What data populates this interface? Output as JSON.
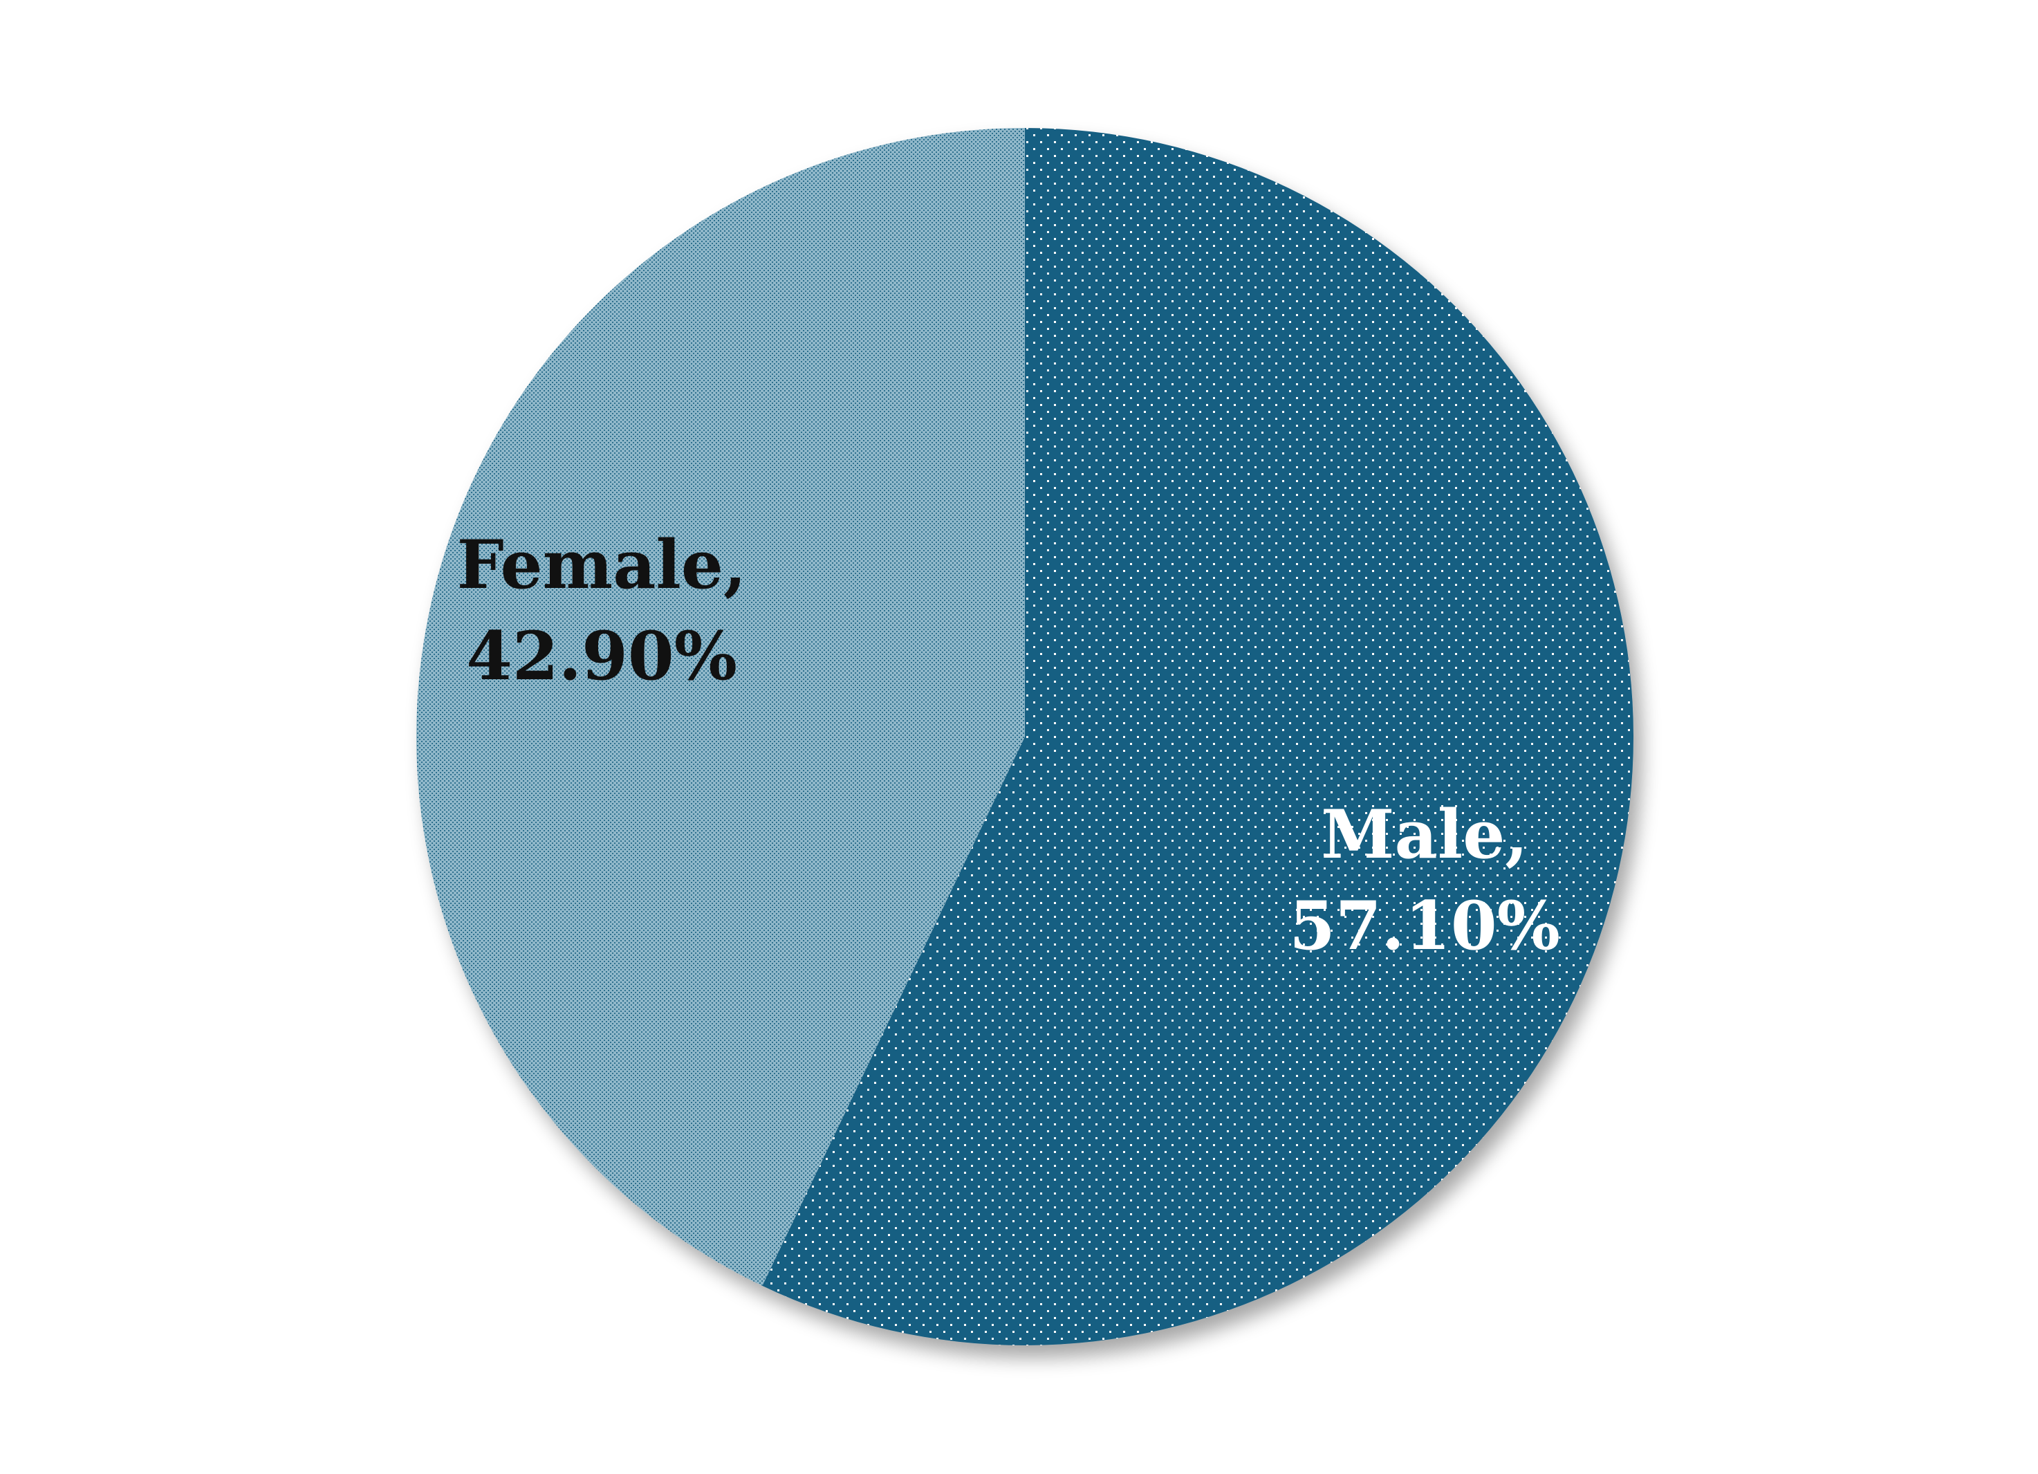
{
  "chart_data": {
    "type": "pie",
    "start_angle_deg": 0,
    "direction": "clockwise",
    "slices": [
      {
        "label": "Male",
        "value": 57.1,
        "label_line1": "Male,",
        "label_line2": "57.10%",
        "color": "#185E82",
        "pattern": "sparse-white-dots",
        "label_color": "#ffffff"
      },
      {
        "label": "Female",
        "value": 42.9,
        "label_line1": "Female,",
        "label_line2": "42.90%",
        "color": "#8FB7C9",
        "pattern": "dense-dark-dots",
        "label_color": "#111111"
      }
    ]
  }
}
